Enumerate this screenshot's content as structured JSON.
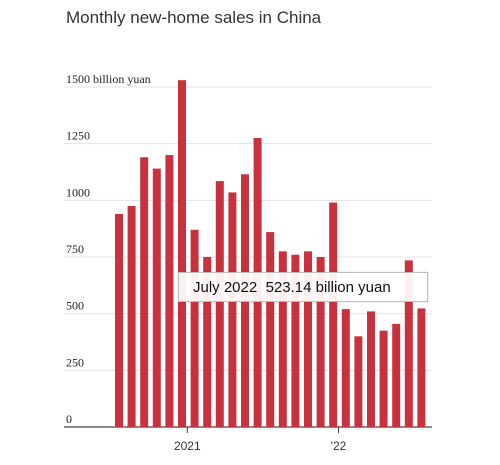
{
  "chart_data": {
    "type": "bar",
    "title": "Monthly new-home sales in China",
    "ylabel": "",
    "xlabel": "",
    "y_unit_label": "1500 billion yuan",
    "ylim": [
      0,
      1500
    ],
    "yticks": [
      "0",
      "250",
      "500",
      "750",
      "1000",
      "1250",
      "1500 billion yuan"
    ],
    "xtick_labels": [
      "2021",
      "'22"
    ],
    "bar_color": "#c8323e",
    "gridlines": true,
    "values": [
      940,
      975,
      1190,
      1140,
      1200,
      1530,
      870,
      750,
      1085,
      1035,
      1115,
      1275,
      860,
      775,
      760,
      775,
      750,
      990,
      520,
      400,
      510,
      425,
      455,
      735,
      523.14
    ],
    "tooltip": {
      "month": "July 2022",
      "value": "523.14 billion yuan"
    }
  }
}
